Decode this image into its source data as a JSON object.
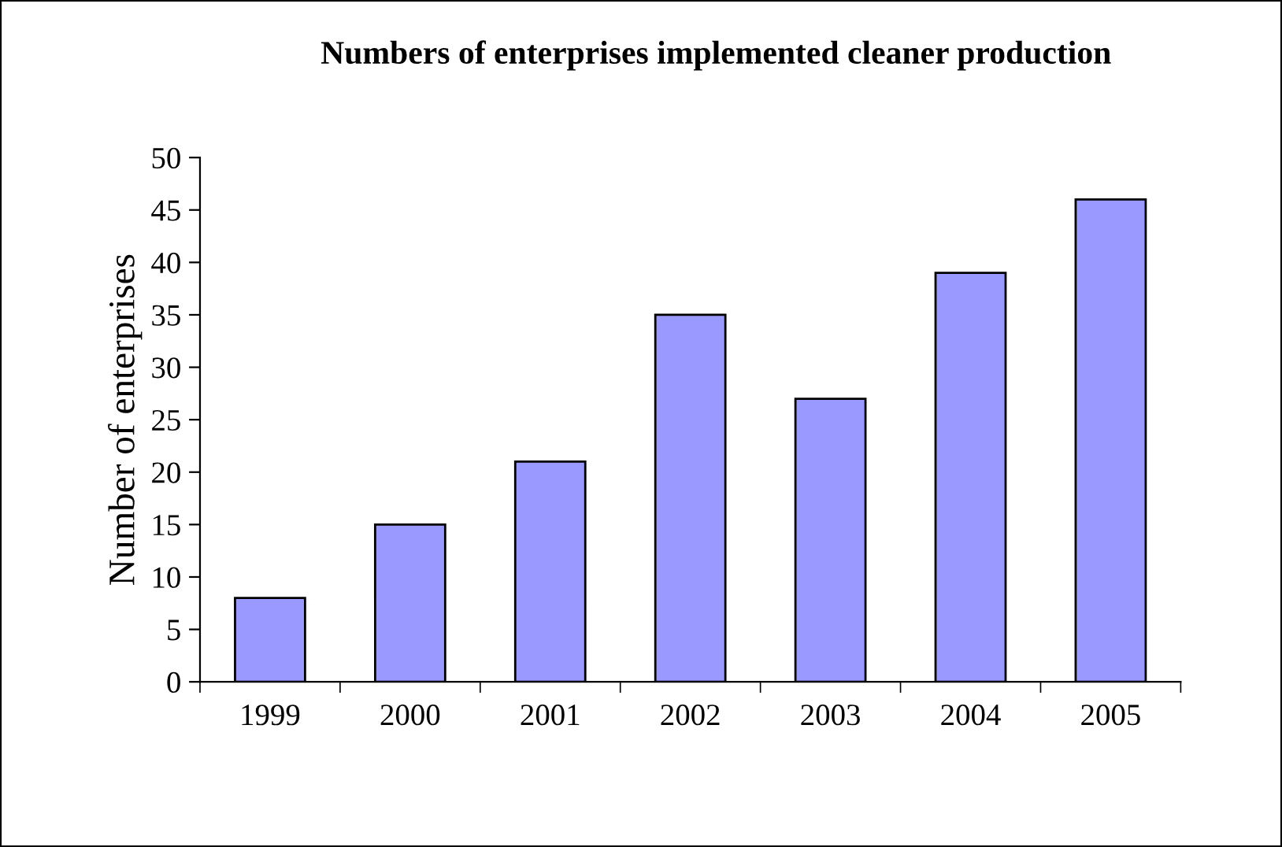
{
  "chart_data": {
    "type": "bar",
    "title": "Numbers of enterprises implemented cleaner production",
    "ylabel": "Number of enterprises",
    "categories": [
      "1999",
      "2000",
      "2001",
      "2002",
      "2003",
      "2004",
      "2005"
    ],
    "values": [
      8,
      15,
      21,
      35,
      27,
      39,
      46
    ],
    "color": "#9999ff",
    "ylim": [
      0,
      50
    ],
    "yticks": [
      0,
      5,
      10,
      15,
      20,
      25,
      30,
      35,
      40,
      45,
      50
    ],
    "grid": false,
    "legend": false
  }
}
